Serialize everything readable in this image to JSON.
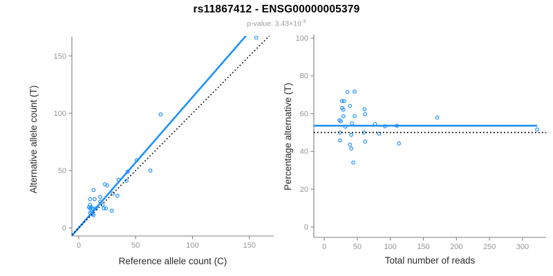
{
  "header": {
    "title": "rs11867412 - ENSG00000005379",
    "subtitle_prefix": "p-value: 3.43×10",
    "subtitle_exponent": "-3"
  },
  "colors": {
    "accent": "#1E90FF",
    "identity_line": "#000000",
    "axis_line": "#7f7f7f",
    "tick_label": "#949494",
    "axis_title": "#2b2b2b",
    "title": "#000000",
    "subtitle": "#9a9a9a"
  },
  "chart_data": [
    {
      "type": "scatter",
      "xlabel": "Reference allele count (C)",
      "ylabel": "Alternative allele count (T)",
      "xticks": [
        0,
        50,
        100,
        150
      ],
      "yticks": [
        0,
        50,
        100,
        150
      ],
      "xlim": [
        -6,
        171.4
      ],
      "ylim": [
        -7.1,
        166.9
      ],
      "grid": false,
      "points": [
        [
          10,
          25
        ],
        [
          13,
          33
        ],
        [
          9,
          18
        ],
        [
          10,
          20
        ],
        [
          10,
          17
        ],
        [
          14,
          25
        ],
        [
          23,
          38
        ],
        [
          11,
          18
        ],
        [
          12,
          17
        ],
        [
          25,
          37
        ],
        [
          19,
          27
        ],
        [
          72,
          99
        ],
        [
          10,
          13
        ],
        [
          11,
          14
        ],
        [
          19,
          23
        ],
        [
          35,
          42
        ],
        [
          15,
          17
        ],
        [
          43,
          49
        ],
        [
          51,
          59
        ],
        [
          12,
          12
        ],
        [
          30,
          30
        ],
        [
          42,
          41
        ],
        [
          156,
          166
        ],
        [
          21,
          20
        ],
        [
          13,
          11
        ],
        [
          22,
          17
        ],
        [
          24,
          17
        ],
        [
          34,
          28
        ],
        [
          63,
          50
        ],
        [
          29,
          15
        ]
      ],
      "lines": [
        {
          "name": "fit-line",
          "kind": "abline",
          "slope": 1.14,
          "intercept": 0,
          "style": "solid",
          "color_key": "accent"
        },
        {
          "name": "identity-line",
          "kind": "abline",
          "slope": 1,
          "intercept": 0,
          "style": "dotted",
          "color_key": "identity_line"
        }
      ]
    },
    {
      "type": "scatter",
      "xlabel": "Total number of reads",
      "ylabel": "Percentage alternative (T)",
      "xticks": [
        0,
        50,
        100,
        150,
        200,
        250,
        300
      ],
      "yticks": [
        0,
        20,
        40,
        60,
        80,
        100
      ],
      "xlim": [
        -15.7,
        335.6
      ],
      "ylim": [
        -5.5,
        101.9
      ],
      "grid": false,
      "points": [
        [
          35,
          71.4
        ],
        [
          46,
          71.7
        ],
        [
          27,
          66.7
        ],
        [
          30,
          66.7
        ],
        [
          27,
          63.0
        ],
        [
          39,
          64.1
        ],
        [
          61,
          62.3
        ],
        [
          29,
          62.1
        ],
        [
          29,
          58.6
        ],
        [
          62,
          59.7
        ],
        [
          46,
          58.7
        ],
        [
          171,
          57.9
        ],
        [
          23,
          56.5
        ],
        [
          25,
          56.0
        ],
        [
          42,
          54.8
        ],
        [
          77,
          54.5
        ],
        [
          32,
          53.1
        ],
        [
          92,
          53.3
        ],
        [
          110,
          53.6
        ],
        [
          24,
          50.0
        ],
        [
          60,
          50.0
        ],
        [
          83,
          49.4
        ],
        [
          322,
          51.6
        ],
        [
          41,
          48.8
        ],
        [
          24,
          45.8
        ],
        [
          39,
          43.6
        ],
        [
          41,
          41.5
        ],
        [
          62,
          45.2
        ],
        [
          113,
          44.2
        ],
        [
          44,
          34.1
        ]
      ],
      "lines": [
        {
          "name": "fit-line",
          "kind": "hline",
          "y": 53.6,
          "x_extent": [
            -16,
            322
          ],
          "style": "solid",
          "color_key": "accent"
        },
        {
          "name": "null-line",
          "kind": "hline",
          "y": 50,
          "style": "dotted",
          "color_key": "identity_line"
        }
      ]
    }
  ]
}
